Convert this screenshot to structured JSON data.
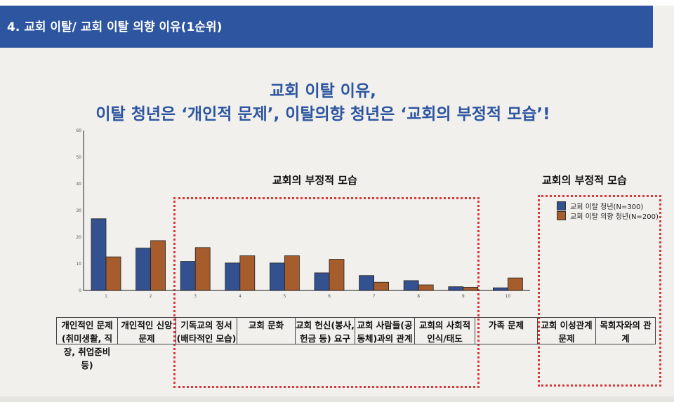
{
  "header": {
    "title": "4. 교회 이탈/ 교회 이탈 의향 이유(1순위)"
  },
  "main_title": {
    "line1": "교회 이탈 이유,",
    "line2": "이탈 청년은 ‘개인적 문제’, 이탈의향 청년은 ‘교회의 부정적 모습’!"
  },
  "group_labels": [
    "교회의 부정적 모습",
    "교회의 부정적 모습"
  ],
  "chart_data": {
    "type": "bar",
    "categories": [
      "1",
      "2",
      "3",
      "4",
      "5",
      "6",
      "7",
      "8",
      "9",
      "10"
    ],
    "series": [
      {
        "name": "교회 이탈 청년(N=300)",
        "color": "#34518f",
        "values": [
          26.9,
          15.9,
          10.9,
          10.3,
          10.3,
          6.6,
          5.6,
          3.7,
          1.4,
          1.0
        ]
      },
      {
        "name": "교회 이탈 의향 청년(N=200)",
        "color": "#a65c2c",
        "values": [
          12.6,
          18.7,
          16.1,
          13.0,
          13.0,
          11.7,
          3.1,
          2.1,
          1.2,
          4.7
        ]
      }
    ],
    "yticks": [
      0,
      10,
      20,
      30,
      40,
      50,
      60
    ],
    "ylim": [
      0,
      60
    ],
    "legend": "right",
    "grid": false
  },
  "table": [
    "개인적인 문제(취미생활, 직장, 취업준비 등)",
    "개인적인 신앙 문제",
    "기독교의 정서(배타적인 모습)",
    "교회 문화",
    "교회 헌신(봉사, 헌금 등) 요구",
    "교회 사람들(공동체)과의 관계",
    "교회의 사회적 인식/태도",
    "가족 문제",
    "교회 이성관계 문제",
    "목회자와의 관계"
  ]
}
